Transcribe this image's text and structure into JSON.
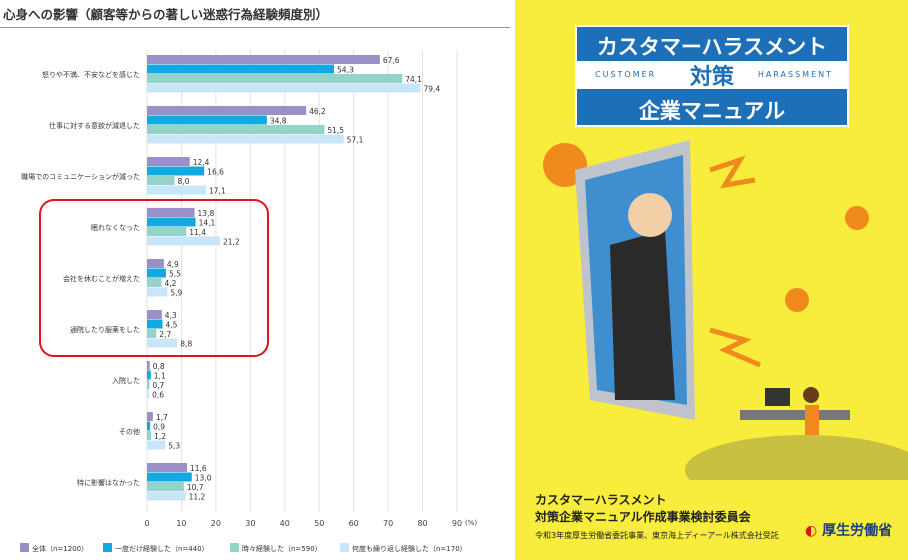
{
  "chart_data": {
    "type": "bar",
    "orientation": "horizontal",
    "title": "心身への影響（顧客等からの著しい迷惑行為経験頻度別）",
    "categories": [
      "怒りや不満、不安などを感じた",
      "仕事に対する意欲が減退した",
      "職場でのコミュニケーションが減った",
      "眠れなくなった",
      "会社を休むことが増えた",
      "通院したり服薬をした",
      "入院した",
      "その他",
      "特に影響はなかった"
    ],
    "series": [
      {
        "name": "全体（n=1200）",
        "color": "#9b8fc8",
        "values": [
          67.6,
          46.2,
          12.4,
          13.8,
          4.9,
          4.3,
          0.8,
          1.7,
          11.6
        ]
      },
      {
        "name": "一度だけ経験した（n=440）",
        "color": "#12a9e0",
        "values": [
          54.3,
          34.8,
          16.6,
          14.1,
          5.5,
          4.5,
          1.1,
          0.9,
          13.0
        ]
      },
      {
        "name": "時々経験した（n=590）",
        "color": "#93d3c8",
        "values": [
          74.1,
          51.5,
          8.0,
          11.4,
          4.2,
          2.7,
          0.7,
          1.2,
          10.7
        ]
      },
      {
        "name": "何度も繰り返し経験した（n=170）",
        "color": "#c8e6f8",
        "values": [
          79.4,
          57.1,
          17.1,
          21.2,
          5.9,
          8.8,
          0.6,
          5.3,
          11.2
        ]
      }
    ],
    "xlim": [
      0,
      90
    ],
    "xticks": [
      0,
      10,
      20,
      30,
      40,
      50,
      60,
      70,
      80,
      90
    ],
    "unit": "(%)",
    "grid": true,
    "legend": "bottom",
    "highlight": {
      "categories": [
        "眠れなくなった",
        "会社を休むことが増えた",
        "通院したり服薬をした"
      ],
      "color": "#e0141e"
    }
  },
  "cover": {
    "title1": "カスタマーハラスメント",
    "sub_left": "CUSTOMER",
    "title2": "対策",
    "sub_right": "HARASSMENT",
    "title3": "企業マニュアル",
    "org1": "カスタマーハラスメント",
    "org2": "対策企業マニュアル作成事業検討委員会",
    "note": "令和3年度厚生労働省委託事業、東京海上ディーアール株式会社受託",
    "logo": "厚生労働省",
    "bg": "#f8ec3c",
    "accent": "#1d6fb8"
  }
}
